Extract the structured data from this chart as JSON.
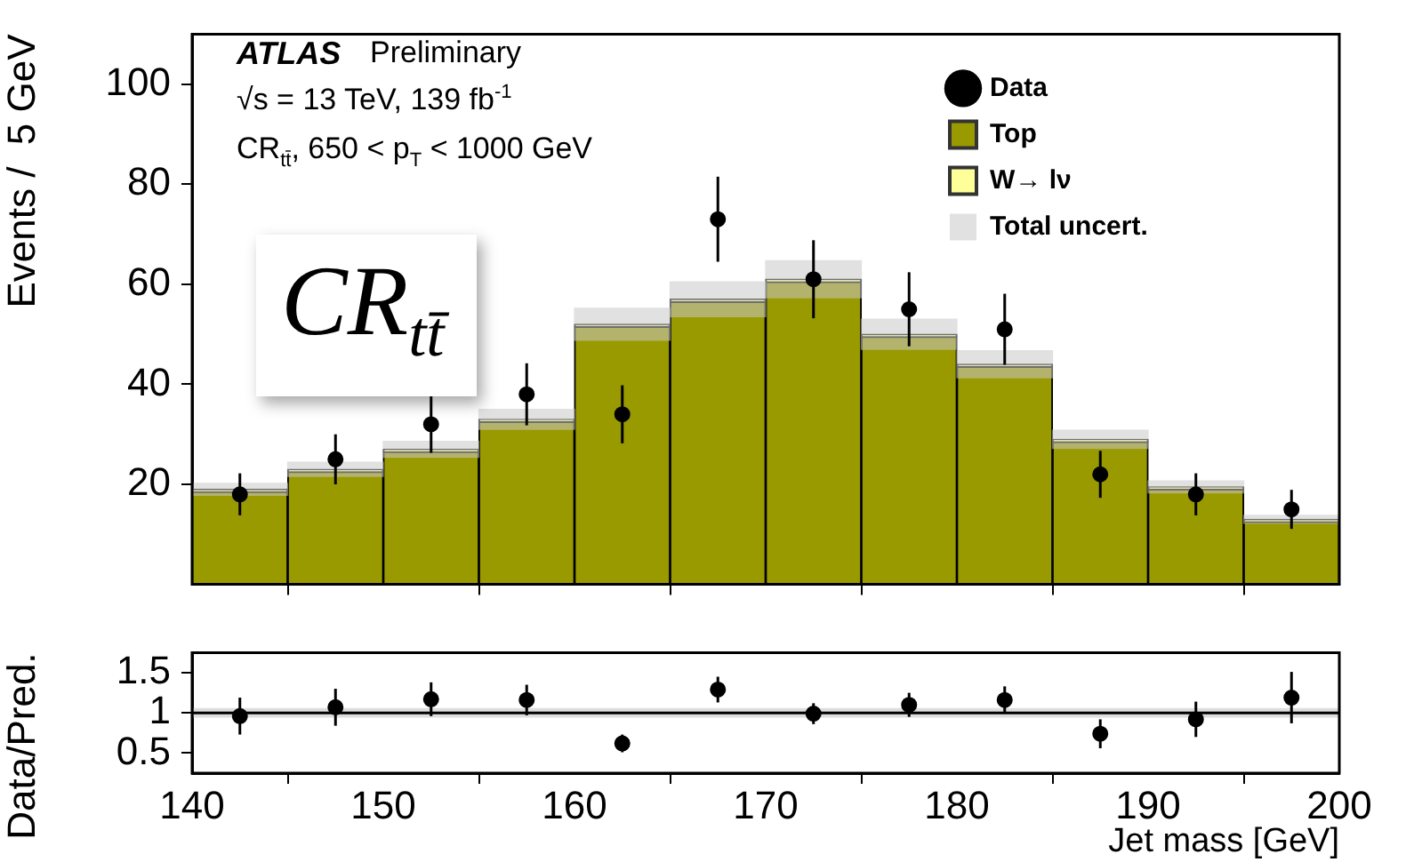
{
  "chart_data": [
    {
      "type": "histogram",
      "ylabel": "Events /  5 GeV",
      "bins": [
        140,
        145,
        150,
        155,
        160,
        165,
        170,
        175,
        180,
        185,
        190,
        195,
        200
      ],
      "xlim": [
        140,
        200
      ],
      "xticks": [
        140,
        150,
        160,
        170,
        180,
        190,
        200
      ],
      "ylim": [
        0,
        110
      ],
      "yticks": [
        20,
        40,
        60,
        80,
        100
      ],
      "tick_labels": "y",
      "legend": "top right",
      "series": [
        {
          "name": "Top",
          "color": "#999900",
          "values": [
            18.5,
            22.5,
            26.5,
            32.5,
            51.5,
            56.5,
            60.5,
            49.5,
            43.5,
            28.5,
            19,
            12.5
          ]
        },
        {
          "name": "W→ lν",
          "color": "#ffff99",
          "base": [
            18.5,
            22.5,
            26.5,
            32.5,
            51.5,
            56.5,
            60.5,
            49.5,
            43.5,
            28.5,
            19,
            12.5
          ],
          "values": [
            0.5,
            0.5,
            0.5,
            0.5,
            0.5,
            0.5,
            0.5,
            0.5,
            0.5,
            0.5,
            0.5,
            0.5
          ]
        },
        {
          "name": "Total uncert.",
          "type": "bar",
          "color": "#c8c8c8",
          "x": [
            142.5,
            147.5,
            152.5,
            157.5,
            162.5,
            167.5,
            172.5,
            177.5,
            182.5,
            187.5,
            192.5,
            197.5
          ],
          "base": [
            17.8,
            21.6,
            25.4,
            31,
            48.8,
            53.5,
            57.3,
            47,
            41.3,
            27.2,
            18.3,
            12.2
          ],
          "values": [
            2.4,
            2.8,
            3.2,
            4,
            6.4,
            7,
            7.4,
            6,
            5.4,
            3.6,
            2.4,
            1.6
          ]
        },
        {
          "name": "Data",
          "type": "scatter",
          "marker": "circle",
          "color": "#000000",
          "x": [
            142.5,
            147.5,
            152.5,
            157.5,
            162.5,
            167.5,
            172.5,
            177.5,
            182.5,
            187.5,
            192.5,
            197.5
          ],
          "values": [
            18,
            25,
            32,
            38,
            34,
            73,
            61,
            55,
            51,
            22,
            18,
            15
          ],
          "errors": [
            4.2,
            5,
            5.7,
            6.2,
            5.8,
            8.5,
            7.8,
            7.4,
            7.1,
            4.7,
            4.2,
            3.9
          ]
        }
      ],
      "annotations": [
        "ATLAS",
        "Preliminary",
        "√s = 13 TeV, 139 fb$^{-1}$",
        "CR$_{tt̄}$, 650 < p$_{T}$ < 1000 GeV",
        "CR$_{tt̄}$"
      ]
    },
    {
      "type": "scatter",
      "xlabel": "Jet mass [GeV]",
      "ylabel": "Data/Pred.",
      "marker": "circle",
      "color": "#000000",
      "xlim": [
        140,
        200
      ],
      "xticks": [
        140,
        150,
        160,
        170,
        180,
        190,
        200
      ],
      "ylim": [
        0.25,
        1.75
      ],
      "yticks": [
        0.5,
        1,
        1.5
      ],
      "x": [
        142.5,
        147.5,
        152.5,
        157.5,
        162.5,
        167.5,
        172.5,
        177.5,
        182.5,
        187.5,
        192.5,
        197.5
      ],
      "values": [
        0.96,
        1.07,
        1.17,
        1.16,
        0.62,
        1.29,
        0.99,
        1.1,
        1.16,
        0.74,
        0.92,
        1.19
      ],
      "errors": [
        0.23,
        0.23,
        0.21,
        0.19,
        0.11,
        0.16,
        0.13,
        0.15,
        0.17,
        0.18,
        0.22,
        0.32
      ],
      "ref_lines": [
        {
          "axis": "y",
          "value": 1,
          "color": "#000000"
        }
      ],
      "bands": [
        {
          "axis": "y",
          "from": 0.94,
          "to": 1.06,
          "color": "#c8c8c8"
        }
      ]
    }
  ]
}
